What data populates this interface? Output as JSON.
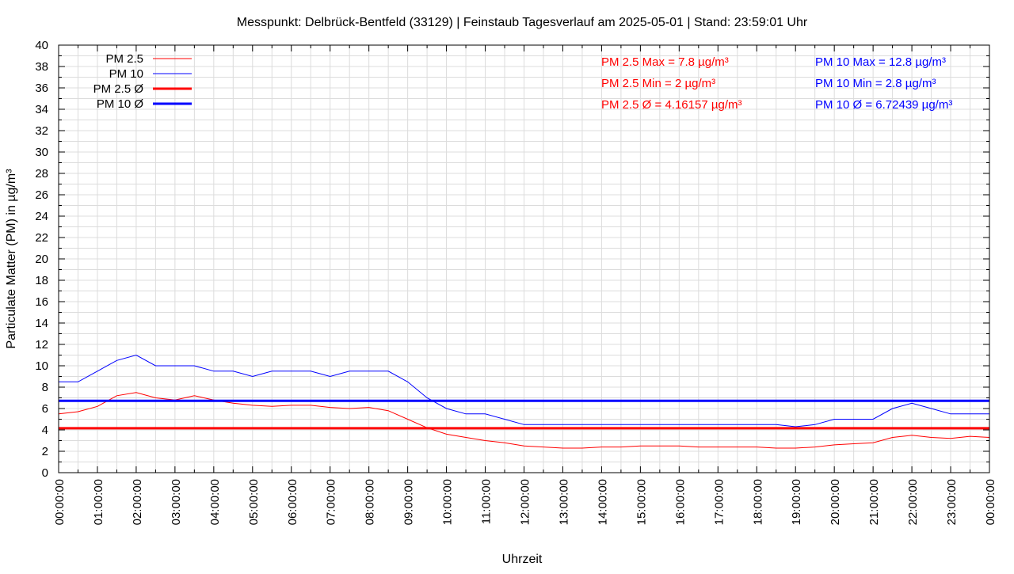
{
  "chart_data": {
    "type": "line",
    "title": "Messpunkt: Delbrück-Bentfeld (33129) | Feinstaub Tagesverlauf am 2025-05-01 | Stand: 23:59:01 Uhr",
    "xlabel": "Uhrzeit",
    "ylabel": "Particulate Matter (PM) in µg/m³",
    "ylim": [
      0,
      40
    ],
    "xlim_hours": [
      0,
      24
    ],
    "grid": true,
    "legend_position": "top-left",
    "y_ticks": [
      "0",
      "2",
      "4",
      "6",
      "8",
      "10",
      "12",
      "14",
      "16",
      "18",
      "20",
      "22",
      "24",
      "26",
      "28",
      "30",
      "32",
      "34",
      "36",
      "38",
      "40"
    ],
    "x_ticks": [
      "00:00:00",
      "01:00:00",
      "02:00:00",
      "03:00:00",
      "04:00:00",
      "05:00:00",
      "06:00:00",
      "07:00:00",
      "08:00:00",
      "09:00:00",
      "10:00:00",
      "11:00:00",
      "12:00:00",
      "13:00:00",
      "14:00:00",
      "15:00:00",
      "16:00:00",
      "17:00:00",
      "18:00:00",
      "19:00:00",
      "20:00:00",
      "21:00:00",
      "22:00:00",
      "23:00:00",
      "00:00:00"
    ],
    "x_hours": [
      0,
      0.5,
      1,
      1.5,
      2,
      2.5,
      3,
      3.5,
      4,
      4.5,
      5,
      5.5,
      6,
      6.5,
      7,
      7.5,
      8,
      8.5,
      9,
      9.5,
      10,
      10.5,
      11,
      11.5,
      12,
      12.5,
      13,
      13.5,
      14,
      14.5,
      15,
      15.5,
      16,
      16.5,
      17,
      17.5,
      18,
      18.5,
      19,
      19.5,
      20,
      20.5,
      21,
      21.5,
      22,
      22.5,
      23,
      23.5,
      24
    ],
    "series": [
      {
        "name": "PM 2.5",
        "color": "#ff0000",
        "style": "thin",
        "values": [
          5.5,
          5.7,
          6.2,
          7.2,
          7.5,
          7.0,
          6.8,
          7.2,
          6.8,
          6.5,
          6.3,
          6.2,
          6.3,
          6.3,
          6.1,
          6.0,
          6.1,
          5.8,
          5.0,
          4.2,
          3.6,
          3.3,
          3.0,
          2.8,
          2.5,
          2.4,
          2.3,
          2.3,
          2.4,
          2.4,
          2.5,
          2.5,
          2.5,
          2.4,
          2.4,
          2.4,
          2.4,
          2.3,
          2.3,
          2.4,
          2.6,
          2.7,
          2.8,
          3.3,
          3.5,
          3.3,
          3.2,
          3.4,
          3.3
        ]
      },
      {
        "name": "PM 10",
        "color": "#0000ff",
        "style": "thin",
        "values": [
          8.5,
          8.5,
          9.5,
          10.5,
          11.0,
          10.0,
          10.0,
          10.0,
          9.5,
          9.5,
          9.0,
          9.5,
          9.5,
          9.5,
          9.0,
          9.5,
          9.5,
          9.5,
          8.5,
          7.0,
          6.0,
          5.5,
          5.5,
          5.0,
          4.5,
          4.5,
          4.5,
          4.5,
          4.5,
          4.5,
          4.5,
          4.5,
          4.5,
          4.5,
          4.5,
          4.5,
          4.5,
          4.5,
          4.3,
          4.5,
          5.0,
          5.0,
          5.0,
          6.0,
          6.5,
          6.0,
          5.5,
          5.5,
          5.5
        ]
      },
      {
        "name": "PM 2.5 Ø",
        "color": "#ff0000",
        "style": "thick",
        "constant": 4.16157
      },
      {
        "name": "PM 10 Ø",
        "color": "#0000ff",
        "style": "thick",
        "constant": 6.72439
      }
    ],
    "annotations": {
      "pm25": [
        "PM 2.5 Max = 7.8 µg/m³",
        "PM 2.5 Min = 2 µg/m³",
        "PM 2.5 Ø = 4.16157 µg/m³"
      ],
      "pm10": [
        "PM 10 Max = 12.8 µg/m³",
        "PM 10 Min = 2.8 µg/m³",
        "PM 10 Ø = 6.72439 µg/m³"
      ]
    }
  }
}
